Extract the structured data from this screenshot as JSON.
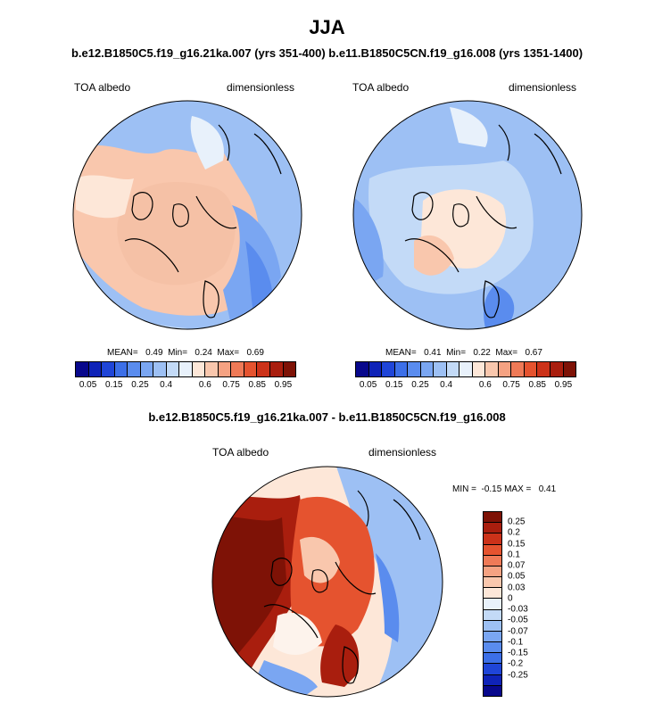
{
  "header": {
    "title": "JJA",
    "subtitle": "b.e12.B1850C5.f19_g16.21ka.007 (yrs 351-400) b.e11.B1850C5CN.f19_g16.008 (yrs 1351-1400)"
  },
  "panel1": {
    "var_label": "TOA albedo",
    "units_label": "dimensionless",
    "stats": "MEAN=   0.49  Min=   0.24  Max=   0.69"
  },
  "panel2": {
    "var_label": "TOA albedo",
    "units_label": "dimensionless",
    "stats": "MEAN=   0.41  Min=   0.22  Max=   0.67"
  },
  "diff_panel": {
    "title": "b.e12.B1850C5.f19_g16.21ka.007 - b.e11.B1850C5CN.f19_g16.008",
    "var_label": "TOA albedo",
    "units_label": "dimensionless",
    "stats": "MIN =  -0.15 MAX =   0.41"
  },
  "colorbar_abs": {
    "colors": [
      "#08088c",
      "#0f23b8",
      "#1f45d8",
      "#3c6fe8",
      "#5a8cee",
      "#7aa6f2",
      "#9dc0f4",
      "#c3daf7",
      "#e8f1fb",
      "#fde7d8",
      "#f9c7ad",
      "#f5a282",
      "#ef7a57",
      "#e5532f",
      "#cc3219",
      "#a91e0e",
      "#7e1206"
    ],
    "ticks": [
      "0.05",
      "0.15",
      "0.25",
      "0.4",
      "0.6",
      "0.75",
      "0.85",
      "0.95"
    ]
  },
  "colorbar_diff": {
    "colors": [
      "#7e1206",
      "#a91e0e",
      "#cc3219",
      "#e5532f",
      "#ef7a57",
      "#f5a282",
      "#f9c7ad",
      "#fde7d8",
      "#e8f1fb",
      "#c3daf7",
      "#9dc0f4",
      "#7aa6f2",
      "#5a8cee",
      "#3c6fe8",
      "#1f45d8",
      "#0f23b8",
      "#08088c"
    ],
    "ticks": [
      "0.25",
      "0.2",
      "0.15",
      "0.1",
      "0.07",
      "0.05",
      "0.03",
      "0",
      "-0.03",
      "-0.05",
      "-0.07",
      "-0.1",
      "-0.15",
      "-0.2",
      "-0.25"
    ]
  }
}
